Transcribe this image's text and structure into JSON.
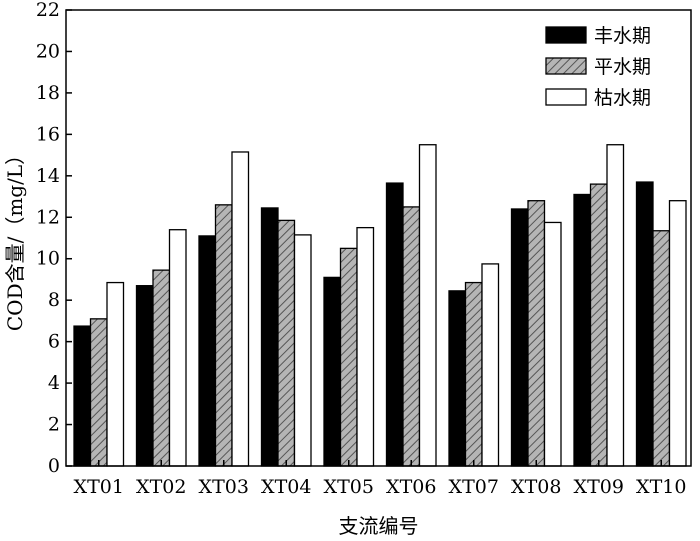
{
  "chart_data": {
    "type": "bar",
    "title": "",
    "xlabel": "支流编号",
    "ylabel": "COD含量/（mg/L）",
    "ylim": [
      0,
      22
    ],
    "yticks": [
      0,
      2,
      4,
      6,
      8,
      10,
      12,
      14,
      16,
      18,
      20,
      22
    ],
    "grid": false,
    "legend_position": "top-right",
    "categories": [
      "XT01",
      "XT02",
      "XT03",
      "XT04",
      "XT05",
      "XT06",
      "XT07",
      "XT08",
      "XT09",
      "XT10"
    ],
    "series": [
      {
        "name": "丰水期",
        "fill": "#000000",
        "pattern": "solid",
        "values": [
          6.75,
          8.7,
          11.1,
          12.45,
          9.1,
          13.65,
          8.45,
          12.4,
          13.1,
          13.7
        ]
      },
      {
        "name": "平水期",
        "fill": "#b5b5b5",
        "pattern": "hatched",
        "values": [
          7.1,
          9.45,
          12.6,
          11.85,
          10.5,
          12.5,
          8.85,
          12.8,
          13.6,
          11.35
        ]
      },
      {
        "name": "枯水期",
        "fill": "#ffffff",
        "pattern": "empty",
        "values": [
          8.85,
          11.4,
          15.15,
          11.15,
          11.5,
          15.5,
          9.75,
          11.75,
          15.5,
          12.8
        ]
      }
    ]
  }
}
